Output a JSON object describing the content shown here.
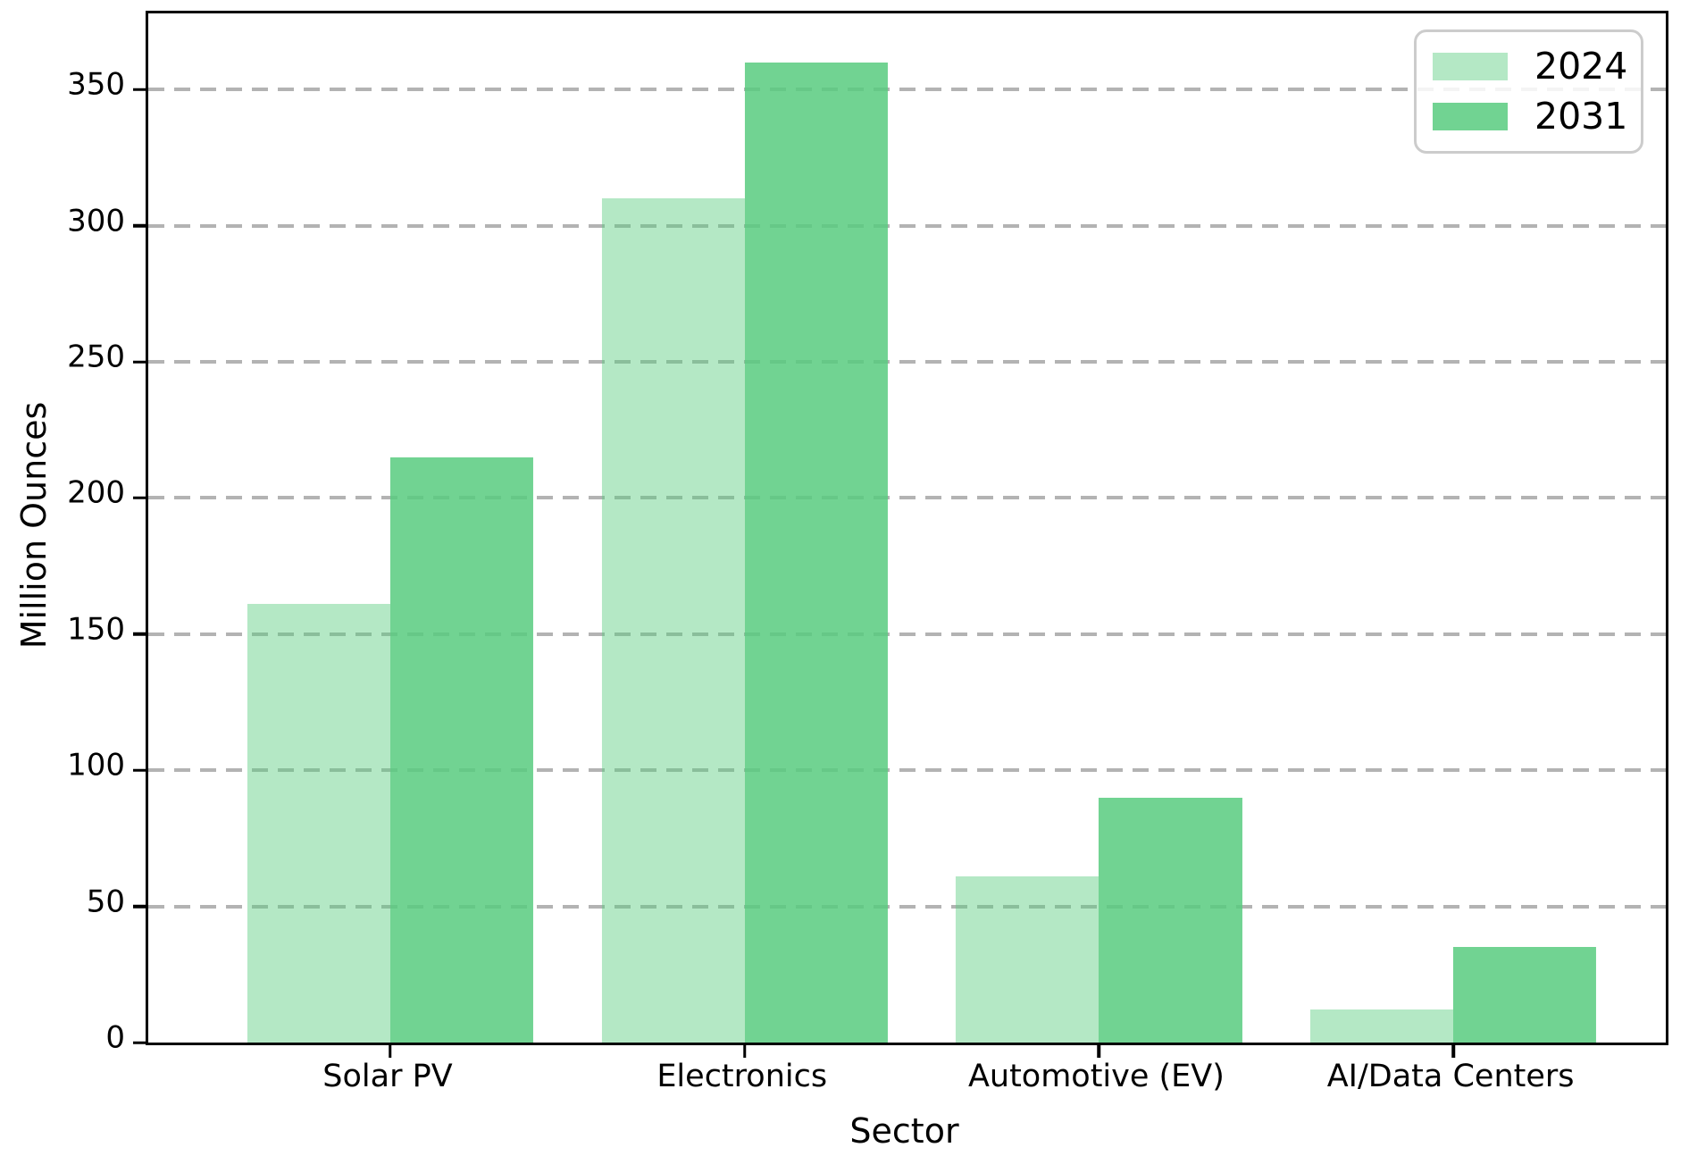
{
  "figure": {
    "background_color": "#ffffff",
    "spine_color": "#000000",
    "grid_color": "#b3b3b3",
    "legend_border_color": "#cccccc"
  },
  "chart_data": {
    "type": "bar",
    "title": "",
    "xlabel": "Sector",
    "ylabel": "Million Ounces",
    "categories": [
      "Solar PV",
      "Electronics",
      "Automotive (EV)",
      "AI/Data Centers"
    ],
    "series": [
      {
        "name": "2024",
        "color": "rgba(88,203,127,0.45)",
        "values": [
          161,
          310,
          61,
          12
        ]
      },
      {
        "name": "2031",
        "color": "rgba(88,203,127,0.85)",
        "values": [
          215,
          360,
          90,
          35
        ]
      }
    ],
    "yticks": [
      0,
      50,
      100,
      150,
      200,
      250,
      300,
      350
    ],
    "ytick_labels": [
      "0",
      "50",
      "100",
      "150",
      "200",
      "250",
      "300",
      "350"
    ],
    "ylim": [
      0,
      378
    ],
    "grid": "horizontal-dashed",
    "legend_position": "upper right"
  }
}
